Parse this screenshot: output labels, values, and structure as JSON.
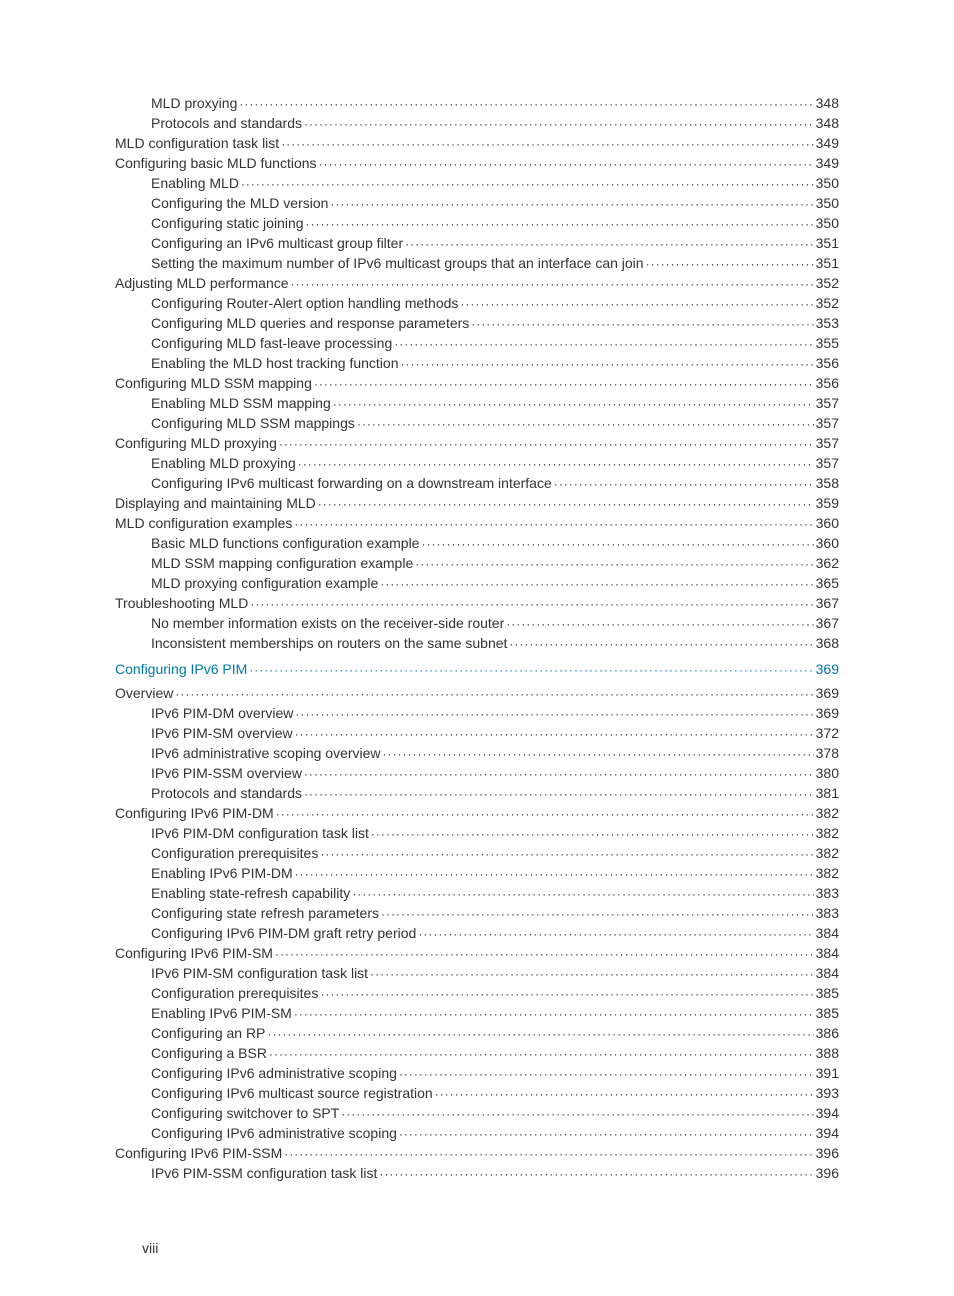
{
  "page_roman": "viii",
  "font": {
    "body_size_pt": 10,
    "family": "Arial"
  },
  "colors": {
    "text": "#333333",
    "accent": "#0079a6",
    "leader": "#333333",
    "bg": "#ffffff"
  },
  "toc": [
    {
      "level": 2,
      "label": "MLD proxying",
      "page": "348"
    },
    {
      "level": 2,
      "label": "Protocols and standards",
      "page": "348"
    },
    {
      "level": 1,
      "label": "MLD configuration task list",
      "page": "349"
    },
    {
      "level": 1,
      "label": "Configuring basic MLD functions",
      "page": "349"
    },
    {
      "level": 2,
      "label": "Enabling MLD",
      "page": "350"
    },
    {
      "level": 2,
      "label": "Configuring the MLD version",
      "page": "350"
    },
    {
      "level": 2,
      "label": "Configuring static joining",
      "page": "350"
    },
    {
      "level": 2,
      "label": "Configuring an IPv6 multicast group filter",
      "page": "351"
    },
    {
      "level": 2,
      "label": "Setting the maximum number of IPv6 multicast groups that an interface can join",
      "page": "351"
    },
    {
      "level": 1,
      "label": "Adjusting MLD performance",
      "page": "352"
    },
    {
      "level": 2,
      "label": "Configuring Router-Alert option handling methods",
      "page": "352"
    },
    {
      "level": 2,
      "label": "Configuring MLD queries and response parameters",
      "page": "353"
    },
    {
      "level": 2,
      "label": "Configuring MLD fast-leave processing",
      "page": "355"
    },
    {
      "level": 2,
      "label": "Enabling the MLD host tracking function",
      "page": "356"
    },
    {
      "level": 1,
      "label": "Configuring MLD SSM mapping",
      "page": "356"
    },
    {
      "level": 2,
      "label": "Enabling MLD SSM mapping",
      "page": "357"
    },
    {
      "level": 2,
      "label": "Configuring MLD SSM mappings",
      "page": "357"
    },
    {
      "level": 1,
      "label": "Configuring MLD proxying",
      "page": "357"
    },
    {
      "level": 2,
      "label": "Enabling MLD proxying",
      "page": "357"
    },
    {
      "level": 2,
      "label": "Configuring IPv6 multicast forwarding on a downstream interface",
      "page": "358"
    },
    {
      "level": 1,
      "label": "Displaying and maintaining MLD",
      "page": "359"
    },
    {
      "level": 1,
      "label": "MLD configuration examples",
      "page": "360"
    },
    {
      "level": 2,
      "label": "Basic MLD functions configuration example",
      "page": "360"
    },
    {
      "level": 2,
      "label": "MLD SSM mapping configuration example",
      "page": "362"
    },
    {
      "level": 2,
      "label": "MLD proxying configuration example",
      "page": "365"
    },
    {
      "level": 1,
      "label": "Troubleshooting MLD",
      "page": "367"
    },
    {
      "level": 2,
      "label": "No member information exists on the receiver-side router",
      "page": "367"
    },
    {
      "level": 2,
      "label": "Inconsistent memberships on routers on the same subnet",
      "page": "368"
    },
    {
      "level": "chapter",
      "label": "Configuring IPv6 PIM",
      "page": "369"
    },
    {
      "level": 1,
      "label": "Overview",
      "page": "369"
    },
    {
      "level": 2,
      "label": "IPv6 PIM-DM overview",
      "page": "369"
    },
    {
      "level": 2,
      "label": "IPv6 PIM-SM overview",
      "page": "372"
    },
    {
      "level": 2,
      "label": "IPv6 administrative scoping overview",
      "page": "378"
    },
    {
      "level": 2,
      "label": "IPv6 PIM-SSM overview",
      "page": "380"
    },
    {
      "level": 2,
      "label": "Protocols and standards",
      "page": "381"
    },
    {
      "level": 1,
      "label": "Configuring IPv6 PIM-DM",
      "page": "382"
    },
    {
      "level": 2,
      "label": "IPv6 PIM-DM configuration task list",
      "page": "382"
    },
    {
      "level": 2,
      "label": "Configuration prerequisites",
      "page": "382"
    },
    {
      "level": 2,
      "label": "Enabling IPv6 PIM-DM",
      "page": "382"
    },
    {
      "level": 2,
      "label": "Enabling state-refresh capability",
      "page": "383"
    },
    {
      "level": 2,
      "label": "Configuring state refresh parameters",
      "page": "383"
    },
    {
      "level": 2,
      "label": "Configuring IPv6 PIM-DM graft retry period",
      "page": "384"
    },
    {
      "level": 1,
      "label": "Configuring IPv6 PIM-SM",
      "page": "384"
    },
    {
      "level": 2,
      "label": "IPv6 PIM-SM configuration task list",
      "page": "384"
    },
    {
      "level": 2,
      "label": "Configuration prerequisites",
      "page": "385"
    },
    {
      "level": 2,
      "label": "Enabling IPv6 PIM-SM",
      "page": "385"
    },
    {
      "level": 2,
      "label": "Configuring an RP",
      "page": "386"
    },
    {
      "level": 2,
      "label": "Configuring a BSR",
      "page": "388"
    },
    {
      "level": 2,
      "label": "Configuring IPv6 administrative scoping",
      "page": "391"
    },
    {
      "level": 2,
      "label": "Configuring IPv6 multicast source registration",
      "page": "393"
    },
    {
      "level": 2,
      "label": "Configuring switchover to SPT",
      "page": "394"
    },
    {
      "level": 2,
      "label": "Configuring IPv6 administrative scoping",
      "page": "394"
    },
    {
      "level": 1,
      "label": "Configuring IPv6 PIM-SSM",
      "page": "396"
    },
    {
      "level": 2,
      "label": "IPv6 PIM-SSM configuration task list",
      "page": "396"
    }
  ]
}
